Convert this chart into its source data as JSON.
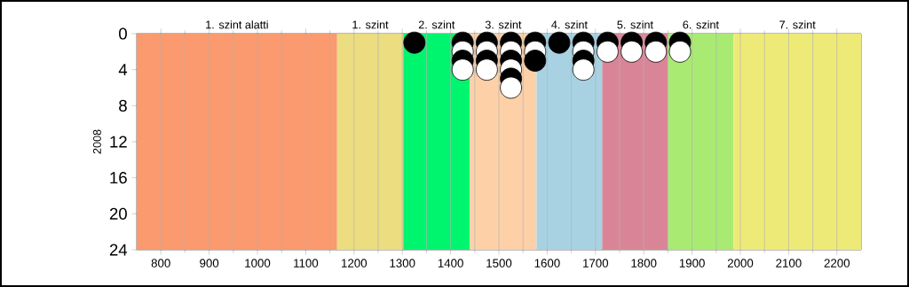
{
  "chart_data": {
    "type": "scatter",
    "ylabel": "2008",
    "marker": "circle",
    "grid": "x",
    "xlim": [
      750,
      2250
    ],
    "xticks": [
      800,
      900,
      1000,
      1100,
      1200,
      1300,
      1400,
      1500,
      1600,
      1700,
      1800,
      1900,
      2000,
      2100,
      2200
    ],
    "ylim": [
      24,
      0
    ],
    "yticks": [
      0,
      4,
      8,
      12,
      16,
      20,
      24
    ],
    "bands": [
      {
        "axis": "x",
        "from": 750,
        "to": 1165,
        "label": "1. szint alatti",
        "color": "#fa9a6e"
      },
      {
        "axis": "x",
        "from": 1165,
        "to": 1302,
        "label": "1. szint",
        "color": "#ebdd80"
      },
      {
        "axis": "x",
        "from": 1302,
        "to": 1440,
        "label": "2. szint",
        "color": "#00f56e"
      },
      {
        "axis": "x",
        "from": 1440,
        "to": 1578,
        "label": "3. szint",
        "color": "#fdd0a8"
      },
      {
        "axis": "x",
        "from": 1578,
        "to": 1714,
        "label": "4. szint",
        "color": "#a8d2e2"
      },
      {
        "axis": "x",
        "from": 1714,
        "to": 1850,
        "label": "5. szint",
        "color": "#d98597"
      },
      {
        "axis": "x",
        "from": 1850,
        "to": 1986,
        "label": "6. szint",
        "color": "#a9ea73"
      },
      {
        "axis": "x",
        "from": 1986,
        "to": 2250,
        "label": "7. szint",
        "color": "#eeea78"
      }
    ],
    "series": [
      {
        "color": "#000000",
        "x": [
          1325,
          1425,
          1425,
          1475,
          1475,
          1525,
          1525,
          1525,
          1575,
          1575,
          1625,
          1675,
          1675,
          1725,
          1775,
          1825,
          1875
        ],
        "values": [
          1,
          1,
          3,
          1,
          3,
          1,
          3,
          5,
          1,
          3,
          1,
          1,
          3,
          1,
          1,
          1,
          1
        ]
      },
      {
        "color": "#ffffff",
        "x": [
          1425,
          1425,
          1475,
          1475,
          1525,
          1525,
          1525,
          1575,
          1675,
          1675,
          1725,
          1775,
          1825,
          1875
        ],
        "values": [
          2,
          4,
          2,
          4,
          2,
          4,
          6,
          2,
          2,
          4,
          2,
          2,
          2,
          2
        ]
      }
    ]
  }
}
